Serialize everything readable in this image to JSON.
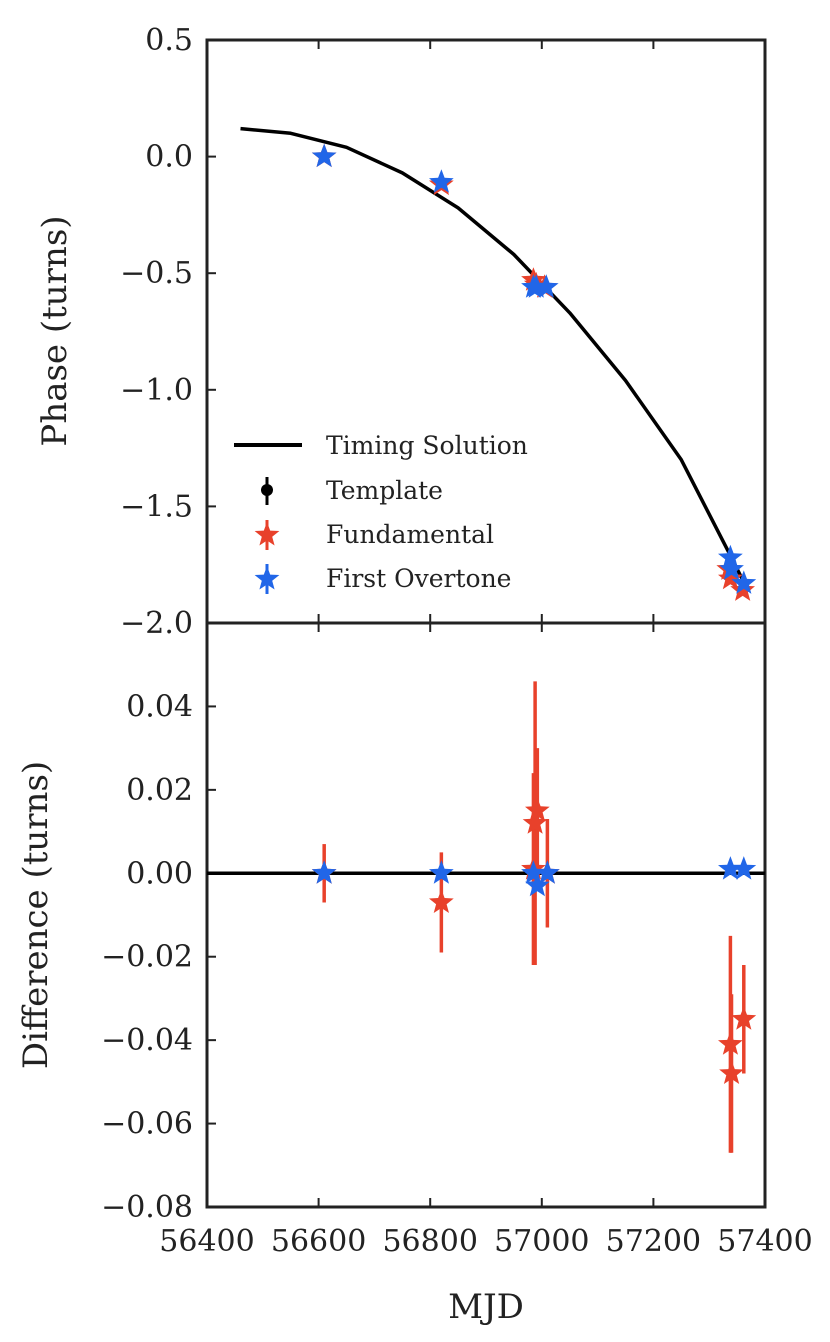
{
  "chart_data": {
    "type": "scatter",
    "x_label": "MJD",
    "x_range": [
      56400,
      57400
    ],
    "x_ticks": [
      56400,
      56600,
      56800,
      57000,
      57200,
      57400
    ],
    "x_tick_labels": [
      "56400",
      "56600",
      "56800",
      "57000",
      "57200",
      "57400"
    ],
    "colors": {
      "fundamental": "#e8412b",
      "overtone": "#2166e8",
      "template": "#000000",
      "axis": "#222222"
    },
    "top_panel": {
      "y_label": "Phase (turns)",
      "y_range": [
        -2.0,
        0.5
      ],
      "y_ticks": [
        0.5,
        0.0,
        -0.5,
        -1.0,
        -1.5,
        -2.0
      ],
      "y_tick_labels": [
        "0.5",
        "0.0",
        "−0.5",
        "−1.0",
        "−1.5",
        "−2.0"
      ],
      "timing_solution": {
        "name": "Timing Solution",
        "x": [
          56460,
          56550,
          56650,
          56750,
          56850,
          56950,
          57050,
          57150,
          57250,
          57340,
          57365
        ],
        "y": [
          0.12,
          0.1,
          0.04,
          -0.07,
          -0.22,
          -0.42,
          -0.67,
          -0.96,
          -1.3,
          -1.72,
          -1.84
        ]
      },
      "series": [
        {
          "name": "Fundamental",
          "color_key": "fundamental",
          "x": [
            56610,
            56820,
            56985,
            56990,
            57005,
            57335,
            57338,
            57360
          ],
          "y": [
            0.0,
            -0.12,
            -0.53,
            -0.55,
            -0.56,
            -1.77,
            -1.81,
            -1.86
          ]
        },
        {
          "name": "First Overtone",
          "color_key": "overtone",
          "x": [
            56610,
            56820,
            56985,
            56990,
            57008,
            57338,
            57340,
            57362
          ],
          "y": [
            0.0,
            -0.11,
            -0.56,
            -0.56,
            -0.56,
            -1.72,
            -1.77,
            -1.83
          ]
        }
      ],
      "legend": {
        "position": "lower-left",
        "entries": [
          {
            "label": "Timing Solution",
            "marker": "line",
            "color_key": "template"
          },
          {
            "label": "Template",
            "marker": "dot",
            "color_key": "template"
          },
          {
            "label": "Fundamental",
            "marker": "star",
            "color_key": "fundamental"
          },
          {
            "label": "First Overtone",
            "marker": "star",
            "color_key": "overtone"
          }
        ]
      }
    },
    "bottom_panel": {
      "y_label": "Difference (turns)",
      "y_range": [
        -0.08,
        0.06
      ],
      "y_ticks": [
        0.04,
        0.02,
        0.0,
        -0.02,
        -0.04,
        -0.06,
        -0.08
      ],
      "y_tick_labels": [
        "0.04",
        "0.02",
        "0.00",
        "−0.02",
        "−0.04",
        "−0.06",
        "−0.08"
      ],
      "zero_line": 0.0,
      "series": [
        {
          "name": "Fundamental",
          "color_key": "fundamental",
          "x": [
            56610,
            56820,
            56985,
            56988,
            56992,
            57010,
            57338,
            57340,
            57362
          ],
          "y": [
            0.0,
            -0.007,
            0.001,
            0.012,
            0.015,
            0.0,
            -0.041,
            -0.048,
            -0.035
          ],
          "err": [
            0.007,
            0.012,
            0.023,
            0.034,
            0.015,
            0.013,
            0.026,
            0.019,
            0.013
          ]
        },
        {
          "name": "First Overtone",
          "color_key": "overtone",
          "x": [
            56610,
            56820,
            56985,
            56992,
            57010,
            57338,
            57362
          ],
          "y": [
            0.0,
            0.0,
            0.0,
            -0.003,
            0.0,
            0.001,
            0.001
          ],
          "err": [
            0.0,
            0.0,
            0.0,
            0.0,
            0.0,
            0.0,
            0.0
          ]
        }
      ]
    }
  }
}
